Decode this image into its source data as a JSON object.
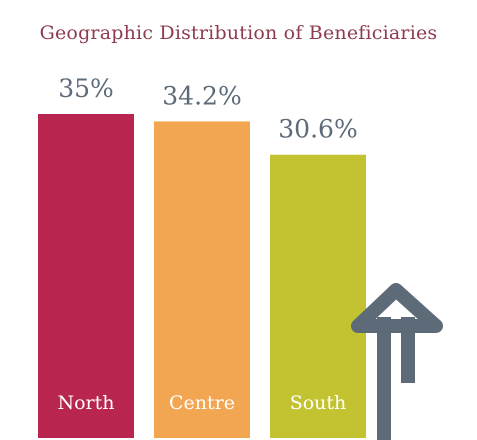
{
  "chart_data": {
    "type": "bar",
    "title": "Geographic Distribution of Beneficiaries",
    "categories": [
      "North",
      "Centre",
      "South"
    ],
    "values": [
      35,
      34.2,
      30.6
    ],
    "value_labels": [
      "35%",
      "34.2%",
      "30.6%"
    ],
    "colors": [
      "#b8254f",
      "#f2a652",
      "#c3c332"
    ],
    "value_label_color": "#5d6b79",
    "category_label_color": "#ffffff",
    "ylim": [
      0,
      35
    ],
    "grid": false,
    "legend": "none"
  },
  "decoration": {
    "icon": "up-arrow-icon",
    "color": "#5d6b79"
  }
}
